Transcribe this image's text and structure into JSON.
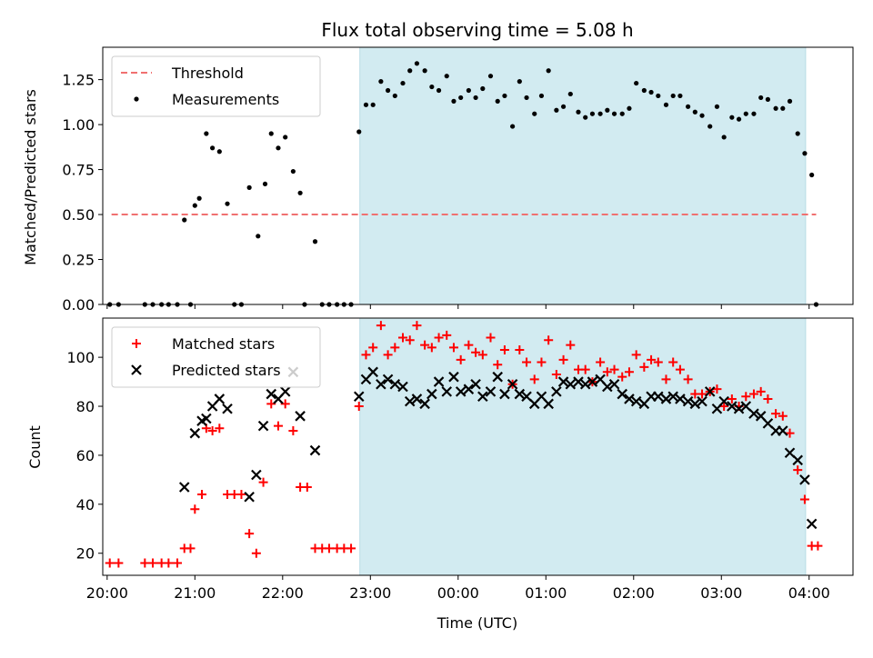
{
  "chart_data": {
    "type": "scatter",
    "title": "Flux total observing time = 5.08 h",
    "xlabel": "Time (UTC)",
    "x_ticks": [
      "20:00",
      "21:00",
      "22:00",
      "23:00",
      "00:00",
      "01:00",
      "02:00",
      "03:00",
      "04:00"
    ],
    "x_range_hours": [
      19.95,
      28.5
    ],
    "shaded_span_hours": [
      22.88,
      27.96
    ],
    "shade_color": "#d2ebf1",
    "top": {
      "ylabel": "Matched/Predicted stars",
      "ylim": [
        0,
        1.43
      ],
      "y_ticks": [
        "0.00",
        "0.25",
        "0.50",
        "0.75",
        "1.00",
        "1.25"
      ],
      "legend_location": "top-left",
      "threshold": {
        "name": "Threshold",
        "value": 0.5,
        "x_range_hours": [
          20.05,
          28.08
        ],
        "color": "#f07070",
        "style": "dashed"
      },
      "series": [
        {
          "name": "Measurements",
          "color": "#000000",
          "marker": "dot",
          "points": [
            [
              20.03,
              0
            ],
            [
              20.13,
              0
            ],
            [
              20.43,
              0
            ],
            [
              20.52,
              0
            ],
            [
              20.62,
              0
            ],
            [
              20.7,
              0
            ],
            [
              20.8,
              0
            ],
            [
              20.88,
              0.47
            ],
            [
              20.95,
              0
            ],
            [
              21.0,
              0.55
            ],
            [
              21.05,
              0.59
            ],
            [
              21.13,
              0.95
            ],
            [
              21.2,
              0.87
            ],
            [
              21.28,
              0.85
            ],
            [
              21.37,
              0.56
            ],
            [
              21.45,
              0
            ],
            [
              21.53,
              0
            ],
            [
              21.62,
              0.65
            ],
            [
              21.72,
              0.38
            ],
            [
              21.8,
              0.67
            ],
            [
              21.87,
              0.95
            ],
            [
              21.95,
              0.87
            ],
            [
              22.03,
              0.93
            ],
            [
              22.12,
              0.74
            ],
            [
              22.2,
              0.62
            ],
            [
              22.25,
              0
            ],
            [
              22.37,
              0.35
            ],
            [
              22.45,
              0
            ],
            [
              22.53,
              0
            ],
            [
              22.62,
              0
            ],
            [
              22.7,
              0
            ],
            [
              22.78,
              0
            ],
            [
              22.87,
              0.96
            ],
            [
              22.95,
              1.11
            ],
            [
              23.03,
              1.11
            ],
            [
              23.12,
              1.24
            ],
            [
              23.2,
              1.19
            ],
            [
              23.28,
              1.16
            ],
            [
              23.37,
              1.23
            ],
            [
              23.45,
              1.3
            ],
            [
              23.53,
              1.34
            ],
            [
              23.62,
              1.3
            ],
            [
              23.7,
              1.21
            ],
            [
              23.78,
              1.19
            ],
            [
              23.87,
              1.27
            ],
            [
              23.95,
              1.13
            ],
            [
              24.03,
              1.15
            ],
            [
              24.12,
              1.19
            ],
            [
              24.2,
              1.15
            ],
            [
              24.28,
              1.2
            ],
            [
              24.37,
              1.27
            ],
            [
              24.45,
              1.13
            ],
            [
              24.53,
              1.16
            ],
            [
              24.62,
              0.99
            ],
            [
              24.7,
              1.24
            ],
            [
              24.78,
              1.15
            ],
            [
              24.87,
              1.06
            ],
            [
              24.95,
              1.16
            ],
            [
              25.03,
              1.3
            ],
            [
              25.12,
              1.08
            ],
            [
              25.2,
              1.1
            ],
            [
              25.28,
              1.17
            ],
            [
              25.37,
              1.07
            ],
            [
              25.45,
              1.04
            ],
            [
              25.53,
              1.06
            ],
            [
              25.62,
              1.06
            ],
            [
              25.7,
              1.08
            ],
            [
              25.78,
              1.06
            ],
            [
              25.87,
              1.06
            ],
            [
              25.95,
              1.09
            ],
            [
              26.03,
              1.23
            ],
            [
              26.12,
              1.19
            ],
            [
              26.2,
              1.18
            ],
            [
              26.28,
              1.16
            ],
            [
              26.37,
              1.11
            ],
            [
              26.45,
              1.16
            ],
            [
              26.53,
              1.16
            ],
            [
              26.62,
              1.1
            ],
            [
              26.7,
              1.07
            ],
            [
              26.78,
              1.05
            ],
            [
              26.87,
              0.99
            ],
            [
              26.95,
              1.1
            ],
            [
              27.03,
              0.93
            ],
            [
              27.12,
              1.04
            ],
            [
              27.2,
              1.03
            ],
            [
              27.28,
              1.06
            ],
            [
              27.37,
              1.06
            ],
            [
              27.45,
              1.15
            ],
            [
              27.53,
              1.14
            ],
            [
              27.62,
              1.09
            ],
            [
              27.7,
              1.09
            ],
            [
              27.78,
              1.13
            ],
            [
              27.87,
              0.95
            ],
            [
              27.95,
              0.84
            ],
            [
              28.03,
              0.72
            ],
            [
              28.08,
              0
            ]
          ]
        }
      ]
    },
    "bottom": {
      "ylabel": "Count",
      "ylim": [
        11,
        116
      ],
      "y_ticks": [
        "20",
        "40",
        "60",
        "80",
        "100"
      ],
      "legend_location": "top-left",
      "series": [
        {
          "name": "Matched stars",
          "color": "#ff0000",
          "marker": "plus",
          "points": [
            [
              20.03,
              16
            ],
            [
              20.13,
              16
            ],
            [
              20.43,
              16
            ],
            [
              20.52,
              16
            ],
            [
              20.62,
              16
            ],
            [
              20.7,
              16
            ],
            [
              20.8,
              16
            ],
            [
              20.88,
              22
            ],
            [
              20.95,
              22
            ],
            [
              21.0,
              38
            ],
            [
              21.08,
              44
            ],
            [
              21.13,
              71
            ],
            [
              21.2,
              70
            ],
            [
              21.28,
              71
            ],
            [
              21.37,
              44
            ],
            [
              21.45,
              44
            ],
            [
              21.53,
              44
            ],
            [
              21.62,
              28
            ],
            [
              21.7,
              20
            ],
            [
              21.78,
              49
            ],
            [
              21.87,
              81
            ],
            [
              21.95,
              72
            ],
            [
              22.03,
              81
            ],
            [
              22.12,
              70
            ],
            [
              22.2,
              47
            ],
            [
              22.28,
              47
            ],
            [
              22.37,
              22
            ],
            [
              22.45,
              22
            ],
            [
              22.53,
              22
            ],
            [
              22.62,
              22
            ],
            [
              22.7,
              22
            ],
            [
              22.78,
              22
            ],
            [
              22.87,
              80
            ],
            [
              22.95,
              101
            ],
            [
              23.03,
              104
            ],
            [
              23.12,
              113
            ],
            [
              23.2,
              101
            ],
            [
              23.28,
              104
            ],
            [
              23.37,
              108
            ],
            [
              23.45,
              107
            ],
            [
              23.53,
              113
            ],
            [
              23.62,
              105
            ],
            [
              23.7,
              104
            ],
            [
              23.78,
              108
            ],
            [
              23.87,
              109
            ],
            [
              23.95,
              104
            ],
            [
              24.03,
              99
            ],
            [
              24.12,
              105
            ],
            [
              24.2,
              102
            ],
            [
              24.28,
              101
            ],
            [
              24.37,
              108
            ],
            [
              24.45,
              97
            ],
            [
              24.53,
              103
            ],
            [
              24.62,
              89
            ],
            [
              24.7,
              103
            ],
            [
              24.78,
              98
            ],
            [
              24.87,
              91
            ],
            [
              24.95,
              98
            ],
            [
              25.03,
              107
            ],
            [
              25.12,
              93
            ],
            [
              25.2,
              99
            ],
            [
              25.28,
              105
            ],
            [
              25.37,
              95
            ],
            [
              25.45,
              95
            ],
            [
              25.53,
              90
            ],
            [
              25.62,
              98
            ],
            [
              25.7,
              94
            ],
            [
              25.78,
              95
            ],
            [
              25.87,
              92
            ],
            [
              25.95,
              94
            ],
            [
              26.03,
              101
            ],
            [
              26.12,
              96
            ],
            [
              26.2,
              99
            ],
            [
              26.28,
              98
            ],
            [
              26.37,
              91
            ],
            [
              26.45,
              98
            ],
            [
              26.53,
              95
            ],
            [
              26.62,
              91
            ],
            [
              26.7,
              85
            ],
            [
              26.78,
              85
            ],
            [
              26.87,
              86
            ],
            [
              26.95,
              87
            ],
            [
              27.03,
              80
            ],
            [
              27.12,
              83
            ],
            [
              27.2,
              80
            ],
            [
              27.28,
              84
            ],
            [
              27.37,
              85
            ],
            [
              27.45,
              86
            ],
            [
              27.53,
              83
            ],
            [
              27.62,
              77
            ],
            [
              27.7,
              76
            ],
            [
              27.78,
              69
            ],
            [
              27.87,
              54
            ],
            [
              27.95,
              42
            ],
            [
              28.03,
              23
            ],
            [
              28.1,
              23
            ]
          ]
        },
        {
          "name": "Predicted stars",
          "color": "#000000",
          "marker": "x",
          "points": [
            [
              20.88,
              47
            ],
            [
              21.0,
              69
            ],
            [
              21.08,
              74
            ],
            [
              21.13,
              75
            ],
            [
              21.2,
              80
            ],
            [
              21.28,
              83
            ],
            [
              21.37,
              79
            ],
            [
              21.62,
              43
            ],
            [
              21.7,
              52
            ],
            [
              21.78,
              72
            ],
            [
              21.87,
              85
            ],
            [
              21.95,
              83
            ],
            [
              22.03,
              86
            ],
            [
              22.12,
              94
            ],
            [
              22.2,
              76
            ],
            [
              22.37,
              62
            ],
            [
              22.87,
              84
            ],
            [
              22.95,
              91
            ],
            [
              23.03,
              94
            ],
            [
              23.12,
              89
            ],
            [
              23.2,
              91
            ],
            [
              23.28,
              89
            ],
            [
              23.37,
              88
            ],
            [
              23.45,
              82
            ],
            [
              23.53,
              83
            ],
            [
              23.62,
              81
            ],
            [
              23.7,
              85
            ],
            [
              23.78,
              90
            ],
            [
              23.87,
              86
            ],
            [
              23.95,
              92
            ],
            [
              24.03,
              86
            ],
            [
              24.12,
              87
            ],
            [
              24.2,
              89
            ],
            [
              24.28,
              84
            ],
            [
              24.37,
              86
            ],
            [
              24.45,
              92
            ],
            [
              24.53,
              85
            ],
            [
              24.62,
              89
            ],
            [
              24.7,
              85
            ],
            [
              24.78,
              84
            ],
            [
              24.87,
              81
            ],
            [
              24.95,
              84
            ],
            [
              25.03,
              81
            ],
            [
              25.12,
              86
            ],
            [
              25.2,
              90
            ],
            [
              25.28,
              89
            ],
            [
              25.37,
              90
            ],
            [
              25.45,
              89
            ],
            [
              25.53,
              90
            ],
            [
              25.62,
              91
            ],
            [
              25.7,
              88
            ],
            [
              25.78,
              89
            ],
            [
              25.87,
              85
            ],
            [
              25.95,
              83
            ],
            [
              26.03,
              82
            ],
            [
              26.12,
              81
            ],
            [
              26.2,
              84
            ],
            [
              26.28,
              84
            ],
            [
              26.37,
              83
            ],
            [
              26.45,
              84
            ],
            [
              26.53,
              83
            ],
            [
              26.62,
              82
            ],
            [
              26.7,
              81
            ],
            [
              26.78,
              82
            ],
            [
              26.87,
              86
            ],
            [
              26.95,
              79
            ],
            [
              27.03,
              82
            ],
            [
              27.12,
              80
            ],
            [
              27.2,
              79
            ],
            [
              27.28,
              80
            ],
            [
              27.37,
              77
            ],
            [
              27.45,
              76
            ],
            [
              27.53,
              73
            ],
            [
              27.62,
              70
            ],
            [
              27.7,
              70
            ],
            [
              27.78,
              61
            ],
            [
              27.87,
              58
            ],
            [
              27.95,
              50
            ],
            [
              28.03,
              32
            ]
          ]
        }
      ]
    }
  }
}
